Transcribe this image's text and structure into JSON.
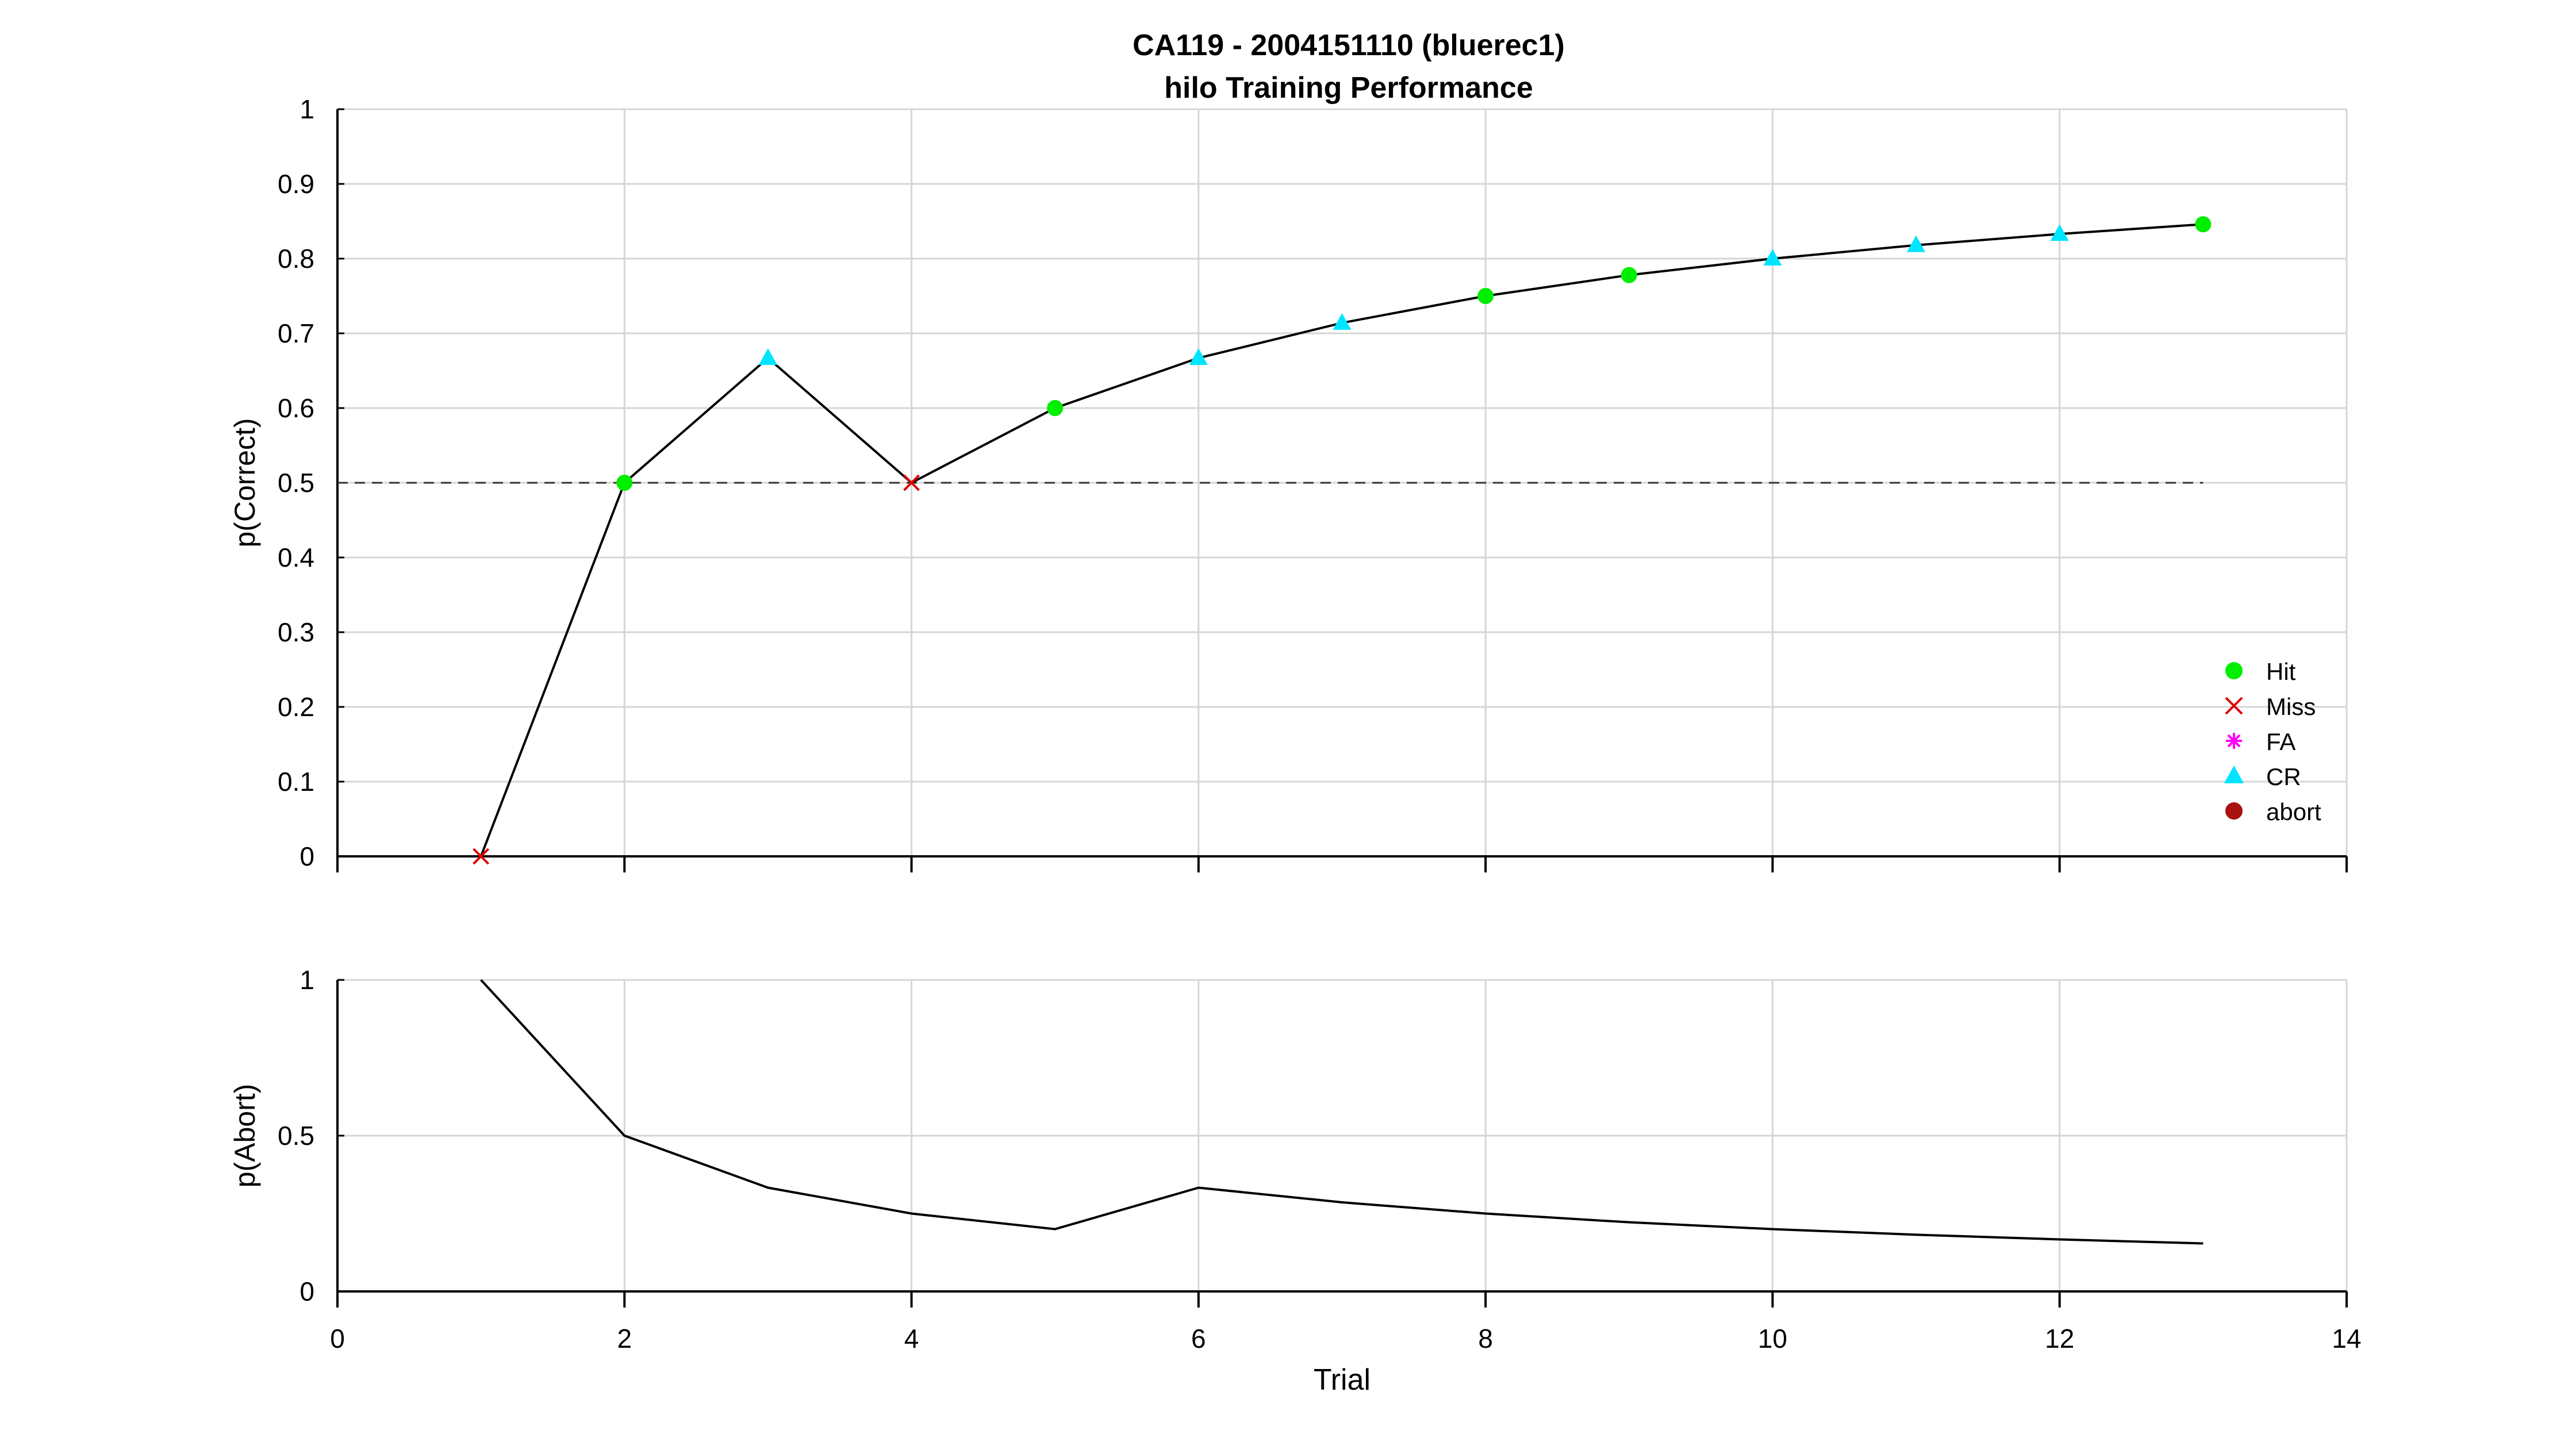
{
  "figure": {
    "title_line1": "CA119 - 2004151110 (bluerec1)",
    "title_line2": "hilo Training Performance"
  },
  "chart_data": [
    {
      "type": "line",
      "ylabel": "p(Correct)",
      "xlim": [
        0,
        14
      ],
      "ylim": [
        0,
        1
      ],
      "xticks": [
        0,
        2,
        4,
        6,
        8,
        10,
        12,
        14
      ],
      "xtick_labels_shown": false,
      "yticks": [
        0,
        0.1,
        0.2,
        0.3,
        0.4,
        0.5,
        0.6,
        0.7,
        0.8,
        0.9,
        1
      ],
      "grid": true,
      "reference_line": {
        "y": 0.5,
        "x_from": 0,
        "x_to": 13,
        "style": "dashed"
      },
      "series": [
        {
          "x": [
            1,
            2,
            3,
            4,
            5,
            6,
            7,
            8,
            9,
            10,
            11,
            12,
            13
          ],
          "y": [
            0,
            0.5,
            0.667,
            0.5,
            0.6,
            0.667,
            0.714,
            0.75,
            0.778,
            0.8,
            0.818,
            0.833,
            0.846
          ],
          "outcomes": [
            "Miss",
            "Hit",
            "CR",
            "Miss",
            "Hit",
            "CR",
            "CR",
            "Hit",
            "Hit",
            "CR",
            "CR",
            "CR",
            "Hit"
          ],
          "color": "#000000"
        }
      ],
      "legend": {
        "position": "bottom-right",
        "entries": [
          {
            "label": "Hit",
            "marker": "circle",
            "color": "#00ee00"
          },
          {
            "label": "Miss",
            "marker": "x",
            "color": "#dd0000"
          },
          {
            "label": "FA",
            "marker": "asterisk",
            "color": "#ff00ff"
          },
          {
            "label": "CR",
            "marker": "triangle",
            "color": "#00e5ff"
          },
          {
            "label": "abort",
            "marker": "circle",
            "color": "#aa1111"
          }
        ]
      }
    },
    {
      "type": "line",
      "ylabel": "p(Abort)",
      "xlabel": "Trial",
      "xlim": [
        0,
        14
      ],
      "ylim": [
        0,
        1
      ],
      "xticks": [
        0,
        2,
        4,
        6,
        8,
        10,
        12,
        14
      ],
      "yticks": [
        0,
        0.5,
        1
      ],
      "grid": true,
      "series": [
        {
          "x": [
            1,
            2,
            3,
            4,
            5,
            6,
            7,
            8,
            9,
            10,
            11,
            12,
            13
          ],
          "y": [
            1,
            0.5,
            0.333,
            0.25,
            0.2,
            0.333,
            0.286,
            0.25,
            0.222,
            0.2,
            0.182,
            0.167,
            0.154
          ],
          "color": "#000000"
        }
      ]
    }
  ]
}
